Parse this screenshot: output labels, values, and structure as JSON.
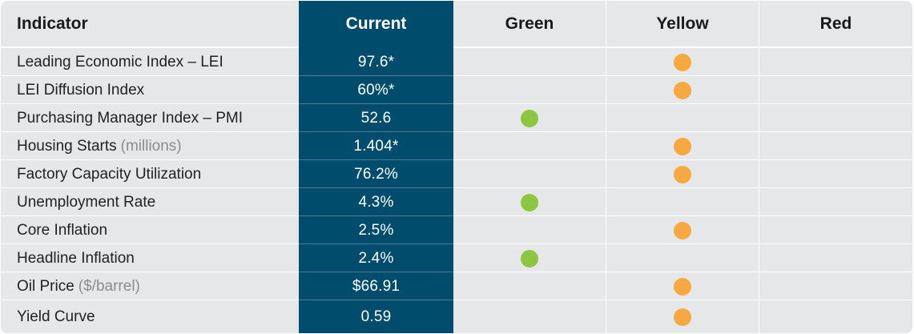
{
  "header": {
    "indicator": "Indicator",
    "current": "Current",
    "green": "Green",
    "yellow": "Yellow",
    "red": "Red"
  },
  "status_colors": {
    "green": "#8dc63f",
    "yellow": "#f7a941"
  },
  "chart_data": {
    "type": "table",
    "columns": [
      "Indicator",
      "Current",
      "Green",
      "Yellow",
      "Red"
    ],
    "rows": [
      {
        "indicator": "Leading Economic Index – LEI",
        "unit": "",
        "current": "97.6*",
        "status": "yellow"
      },
      {
        "indicator": "LEI Diffusion Index",
        "unit": "",
        "current": "60%*",
        "status": "yellow"
      },
      {
        "indicator": "Purchasing Manager Index – PMI",
        "unit": "",
        "current": "52.6",
        "status": "green"
      },
      {
        "indicator": "Housing Starts",
        "unit": "(millions)",
        "current": "1.404*",
        "status": "yellow"
      },
      {
        "indicator": "Factory Capacity Utilization",
        "unit": "",
        "current": "76.2%",
        "status": "yellow"
      },
      {
        "indicator": "Unemployment Rate",
        "unit": "",
        "current": "4.3%",
        "status": "green"
      },
      {
        "indicator": "Core Inflation",
        "unit": "",
        "current": "2.5%",
        "status": "yellow"
      },
      {
        "indicator": "Headline Inflation",
        "unit": "",
        "current": "2.4%",
        "status": "green"
      },
      {
        "indicator": "Oil Price",
        "unit": "($/barrel)",
        "current": "$66.91",
        "status": "yellow"
      },
      {
        "indicator": "Yield Curve",
        "unit": "",
        "current": "0.59",
        "status": "yellow"
      }
    ]
  }
}
